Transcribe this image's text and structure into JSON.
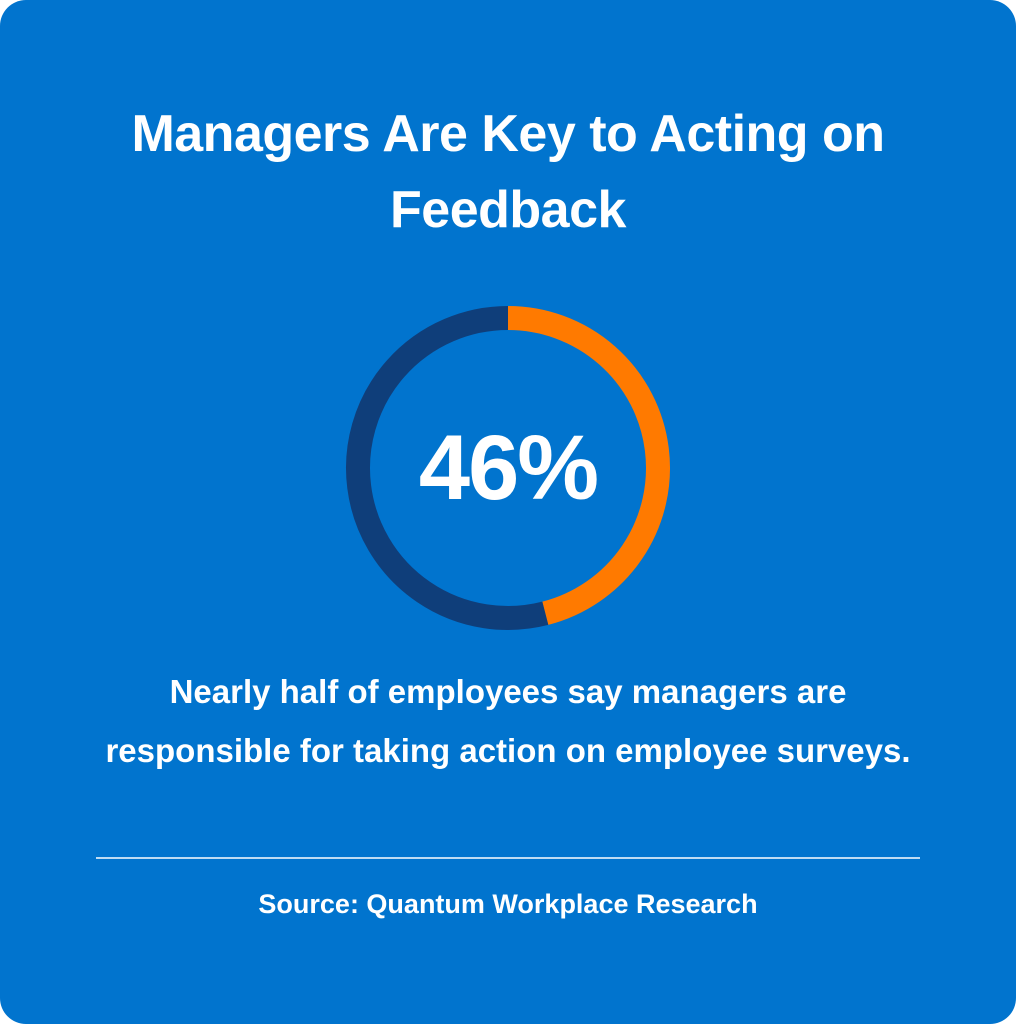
{
  "chart_data": {
    "type": "pie",
    "title": "Managers Are Key to Acting on Feedback",
    "value_label": "46%",
    "values": [
      46,
      54
    ],
    "colors": {
      "primary": "#FF7A00",
      "track": "#0F3E7A",
      "background": "#0174CE"
    },
    "description": "Nearly half of employees say managers are responsible for taking action on employee surveys.",
    "source": "Source: Quantum Workplace Research"
  }
}
